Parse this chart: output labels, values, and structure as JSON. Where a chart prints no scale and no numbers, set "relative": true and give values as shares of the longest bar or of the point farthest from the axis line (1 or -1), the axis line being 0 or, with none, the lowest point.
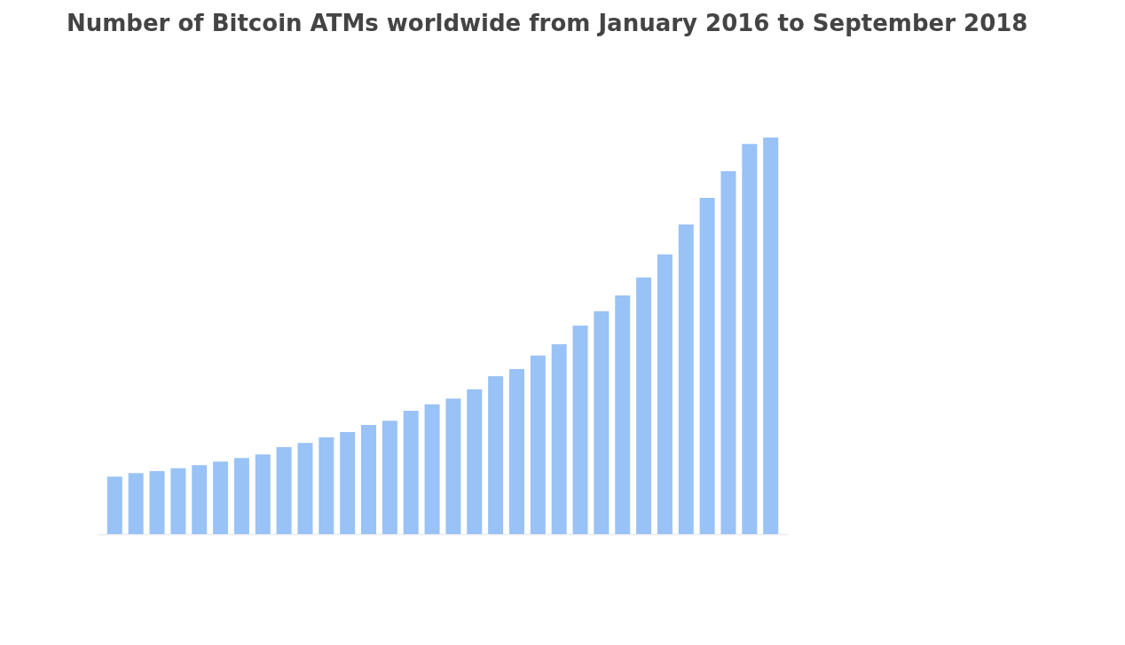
{
  "chart_data": {
    "type": "bar",
    "title": "Number of Bitcoin ATMs worldwide from January 2016 to September 2018",
    "relative": true,
    "categories": [
      null,
      null,
      null,
      null,
      null,
      null,
      null,
      null,
      null,
      null,
      null,
      null,
      null,
      null,
      null,
      null,
      null,
      null,
      null,
      null,
      null,
      null,
      null,
      null,
      null,
      null,
      null,
      null,
      null,
      null,
      null,
      null
    ],
    "color": "#94bff5",
    "values": [
      0.145,
      0.154,
      0.159,
      0.166,
      0.174,
      0.183,
      0.192,
      0.201,
      0.219,
      0.23,
      0.244,
      0.257,
      0.275,
      0.286,
      0.311,
      0.327,
      0.342,
      0.365,
      0.398,
      0.416,
      0.45,
      0.479,
      0.526,
      0.562,
      0.602,
      0.647,
      0.705,
      0.781,
      0.848,
      0.915,
      0.984,
      1
    ]
  }
}
